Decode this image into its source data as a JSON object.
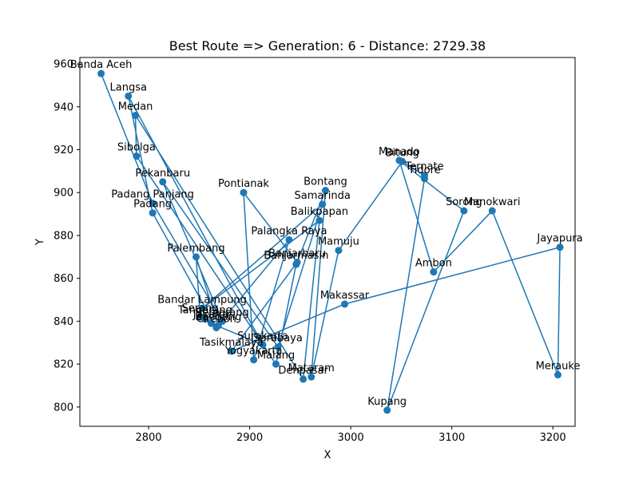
{
  "chart_data": {
    "type": "line",
    "title": "Best Route => Generation: 6 - Distance: 2729.38",
    "xlabel": "X",
    "ylabel": "Y",
    "xlim": [
      2732,
      3222
    ],
    "ylim": [
      791,
      963
    ],
    "xticks": [
      2800,
      2900,
      3000,
      3100,
      3200
    ],
    "yticks": [
      800,
      820,
      840,
      860,
      880,
      900,
      920,
      940,
      960
    ],
    "grid": false,
    "color": "#1f77b4",
    "points": [
      {
        "name": "Banda Aceh",
        "x": 2753,
        "y": 955.5
      },
      {
        "name": "Padang Panjang",
        "x": 2804,
        "y": 895
      },
      {
        "name": "Semarang",
        "x": 2873,
        "y": 840
      },
      {
        "name": "Pekanbaru",
        "x": 2814,
        "y": 905
      },
      {
        "name": "Surabaya",
        "x": 2928,
        "y": 828
      },
      {
        "name": "Samarinda",
        "x": 2972,
        "y": 894.5
      },
      {
        "name": "Bandar Lampung",
        "x": 2853,
        "y": 846
      },
      {
        "name": "Balikpapan",
        "x": 2969,
        "y": 887
      },
      {
        "name": "Denpasar",
        "x": 2953,
        "y": 813
      },
      {
        "name": "Medan",
        "x": 2787,
        "y": 936
      },
      {
        "name": "Sibolga",
        "x": 2788,
        "y": 917
      },
      {
        "name": "Malang",
        "x": 2926,
        "y": 820
      },
      {
        "name": "Banjarmasin",
        "x": 2946,
        "y": 866.5
      },
      {
        "name": "Bontang",
        "x": 2975,
        "y": 901
      },
      {
        "name": "Mataram",
        "x": 2961,
        "y": 814
      },
      {
        "name": "Mamuju",
        "x": 2988,
        "y": 873
      },
      {
        "name": "Bitung",
        "x": 3051,
        "y": 914.5
      },
      {
        "name": "Ternate",
        "x": 3073,
        "y": 908
      },
      {
        "name": "Tidore",
        "x": 3073,
        "y": 906.5
      },
      {
        "name": "Kupang",
        "x": 3036,
        "y": 798.5
      },
      {
        "name": "Sorong",
        "x": 3112,
        "y": 891.5
      },
      {
        "name": "Manado",
        "x": 3048,
        "y": 915
      },
      {
        "name": "Ambon",
        "x": 3082,
        "y": 863
      },
      {
        "name": "Manokwari",
        "x": 3140,
        "y": 891.5
      },
      {
        "name": "Merauke",
        "x": 3205,
        "y": 815
      },
      {
        "name": "Jayapura",
        "x": 3207,
        "y": 874.5
      },
      {
        "name": "Makassar",
        "x": 2994,
        "y": 848
      },
      {
        "name": "Tasikmalaya",
        "x": 2882,
        "y": 826
      },
      {
        "name": "Banjarbaru",
        "x": 2947,
        "y": 867.5
      },
      {
        "name": "Pontianak",
        "x": 2894,
        "y": 900
      },
      {
        "name": "Yogyakarta",
        "x": 2904,
        "y": 822
      },
      {
        "name": "Palangka Raya",
        "x": 2939,
        "y": 878
      },
      {
        "name": "Cirebon",
        "x": 2867,
        "y": 837
      },
      {
        "name": "Padang",
        "x": 2804,
        "y": 890.5
      },
      {
        "name": "Langsa",
        "x": 2780,
        "y": 945
      },
      {
        "name": "Surakarta",
        "x": 2913,
        "y": 829
      },
      {
        "name": "Jakarta",
        "x": 2862,
        "y": 839
      },
      {
        "name": "Tangerang",
        "x": 2856,
        "y": 841
      },
      {
        "name": "Bandung",
        "x": 2869,
        "y": 838
      },
      {
        "name": "Palembang",
        "x": 2847,
        "y": 870
      },
      {
        "name": "Serang",
        "x": 2851,
        "y": 842
      }
    ]
  }
}
